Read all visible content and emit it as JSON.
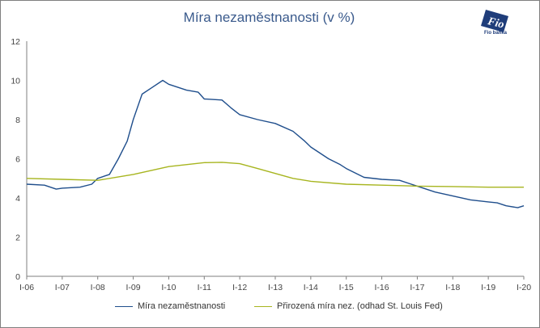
{
  "chart_data": {
    "type": "line",
    "title": "Míra nezaměstnanosti (v %)",
    "xlabel": "",
    "ylabel": "",
    "ylim": [
      0,
      12
    ],
    "yticks": [
      0,
      2,
      4,
      6,
      8,
      10,
      12
    ],
    "x_tick_labels": [
      "I-06",
      "I-07",
      "I-08",
      "I-09",
      "I-10",
      "I-11",
      "I-12",
      "I-13",
      "I-14",
      "I-15",
      "I-16",
      "I-17",
      "I-18",
      "I-19",
      "I-20"
    ],
    "grid": false,
    "legend_position": "bottom",
    "x_year_start": 2006,
    "x_year_end": 2020,
    "series": [
      {
        "name": "Míra nezaměstnanosti",
        "color": "#1f4e8c",
        "points": [
          [
            2006.0,
            4.7
          ],
          [
            2006.5,
            4.65
          ],
          [
            2006.83,
            4.45
          ],
          [
            2007.0,
            4.5
          ],
          [
            2007.5,
            4.55
          ],
          [
            2007.83,
            4.7
          ],
          [
            2008.0,
            5.0
          ],
          [
            2008.33,
            5.2
          ],
          [
            2008.58,
            6.0
          ],
          [
            2008.83,
            6.9
          ],
          [
            2009.0,
            8.0
          ],
          [
            2009.25,
            9.3
          ],
          [
            2009.5,
            9.6
          ],
          [
            2009.83,
            10.0
          ],
          [
            2010.0,
            9.8
          ],
          [
            2010.5,
            9.5
          ],
          [
            2010.83,
            9.4
          ],
          [
            2011.0,
            9.05
          ],
          [
            2011.5,
            9.0
          ],
          [
            2011.75,
            8.6
          ],
          [
            2012.0,
            8.25
          ],
          [
            2012.5,
            8.0
          ],
          [
            2013.0,
            7.8
          ],
          [
            2013.5,
            7.4
          ],
          [
            2013.83,
            6.9
          ],
          [
            2014.0,
            6.6
          ],
          [
            2014.5,
            6.0
          ],
          [
            2014.83,
            5.7
          ],
          [
            2015.0,
            5.5
          ],
          [
            2015.5,
            5.05
          ],
          [
            2016.0,
            4.95
          ],
          [
            2016.5,
            4.9
          ],
          [
            2016.83,
            4.7
          ],
          [
            2017.0,
            4.6
          ],
          [
            2017.5,
            4.3
          ],
          [
            2018.0,
            4.1
          ],
          [
            2018.5,
            3.9
          ],
          [
            2019.0,
            3.8
          ],
          [
            2019.25,
            3.75
          ],
          [
            2019.5,
            3.6
          ],
          [
            2019.83,
            3.5
          ],
          [
            2020.0,
            3.6
          ]
        ]
      },
      {
        "name": "Přirozená míra nez. (odhad St. Louis Fed)",
        "color": "#a7b51f",
        "points": [
          [
            2006.0,
            5.0
          ],
          [
            2007.0,
            4.95
          ],
          [
            2008.0,
            4.9
          ],
          [
            2009.0,
            5.2
          ],
          [
            2010.0,
            5.6
          ],
          [
            2011.0,
            5.8
          ],
          [
            2011.5,
            5.82
          ],
          [
            2012.0,
            5.75
          ],
          [
            2012.5,
            5.5
          ],
          [
            2013.0,
            5.25
          ],
          [
            2013.5,
            5.0
          ],
          [
            2014.0,
            4.85
          ],
          [
            2015.0,
            4.7
          ],
          [
            2016.0,
            4.65
          ],
          [
            2017.0,
            4.6
          ],
          [
            2018.0,
            4.58
          ],
          [
            2019.0,
            4.55
          ],
          [
            2020.0,
            4.55
          ]
        ]
      }
    ]
  },
  "logo": {
    "text": "Fio banka"
  }
}
